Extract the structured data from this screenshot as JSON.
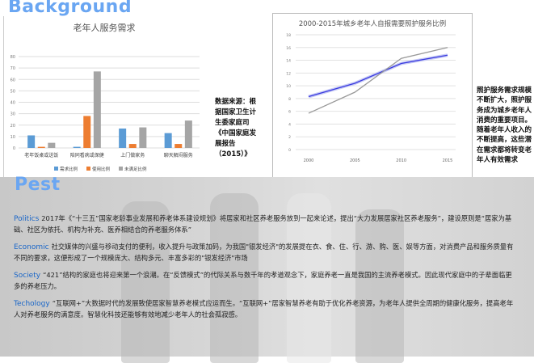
{
  "background_title": "Background",
  "pest_title": "Pest",
  "source_note": "数据来源：根据国家卫生计生委家庭司《中国家庭发展报告（2015）》",
  "side_note": "照护服务需求规模不断扩大，照护服务成为城乡老年人消费的重要项目。随着老年人收入的不断提高，这些潜在需求都将转变老年人有效需求",
  "colors": {
    "accent": "#6aa6f2",
    "keyword": "#1a66c8",
    "bar1": "#5b9bd5",
    "bar2": "#ed7d31",
    "bar3": "#a5a5a5",
    "line1": "#3a3adf",
    "line2": "#999999"
  },
  "paragraphs": [
    {
      "key": "Politics",
      "text": "2017年《“十三五”国家老龄事业发展和养老体系建设规划》将居家和社区养老服务放到一起来论述，提出“大力发展居家社区养老服务”，建设原则是“居家为基础、社区为依托、机构为补充、医养相结合的养老服务体系”"
    },
    {
      "key": "Economic",
      "text": "社交媒体的兴盛与移动支付的便利，收入提升与政策加码，为我国\"银发经济\"的发展提在衣、食、住、行、游、购、医、娱等方面，对消费产品和服务质量有不同的要求，这便形成了一个规模庞大、结构多元、丰富多彩的\"银发经济\"市场"
    },
    {
      "key": "Society",
      "text": "“421”结构的家庭也将迎来第一个浪潮。在“反馈模式”的代际关系与数千年的孝道观念下，家庭养老一直是我国的主流养老模式。因此现代家庭中的子辈面临更多的养老压力。"
    },
    {
      "key": "Techology",
      "text": "“互联网+”大数据时代的发展致使居家智慧养老模式应运而生。“互联网+”居家智慧养老有助于优化养老资源，为老年人提供全周期的健康化服务，提高老年人对养老服务的满意度。智慧化科技还能够有效地减少老年人的社会孤寂感。"
    }
  ],
  "chart_data": [
    {
      "type": "bar",
      "title": "老年人服务需求",
      "categories": [
        "老年饭桌或送饭",
        "陪同看病或保健",
        "上门做家务",
        "聊天解闷服务"
      ],
      "series": [
        {
          "name": "需求比例",
          "values": [
            11,
            1,
            17,
            13
          ]
        },
        {
          "name": "使用比例",
          "values": [
            1,
            28,
            3.5,
            3.5
          ]
        },
        {
          "name": "未满足比例",
          "values": [
            4.5,
            67,
            18,
            24
          ]
        }
      ],
      "ylim": [
        0,
        80
      ],
      "yticks": [
        "0",
        "10",
        "20",
        "30",
        "40",
        "50",
        "60",
        "70",
        "80"
      ],
      "grid": true,
      "legend": "bottom"
    },
    {
      "type": "line",
      "title": "2000-2015年城乡老年人自报需要照护服务比例",
      "x": [
        "2000",
        "2005",
        "2010",
        "2015"
      ],
      "series": [
        {
          "values": [
            8.3,
            10.4,
            13.5,
            14.8
          ]
        },
        {
          "values": [
            5.7,
            9.0,
            14.3,
            16.0
          ]
        }
      ],
      "ylim": [
        0,
        18
      ],
      "yticks": [
        "0",
        "2",
        "4",
        "6",
        "8",
        "10",
        "12",
        "14",
        "16",
        "18"
      ],
      "grid": true
    }
  ]
}
